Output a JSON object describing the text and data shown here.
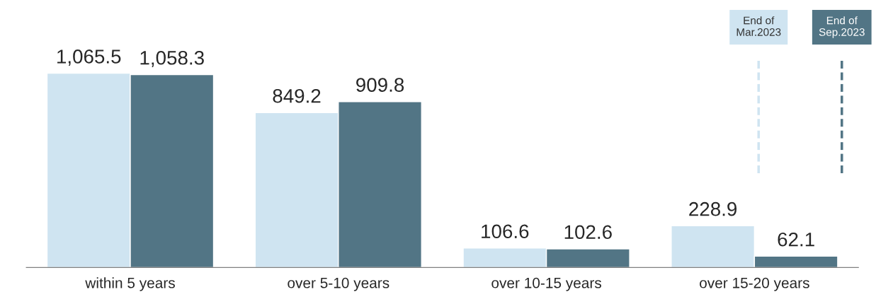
{
  "chart_data": {
    "type": "bar",
    "categories": [
      "within 5 years",
      "over 5-10 years",
      "over 10-15 years",
      "over 15-20 years"
    ],
    "series": [
      {
        "name": "End of\nMar.2023",
        "color": "#cfe4f1",
        "values": [
          1065.5,
          849.2,
          106.6,
          228.9
        ],
        "value_labels": [
          "1,065.5",
          "849.2",
          "106.6",
          "228.9"
        ]
      },
      {
        "name": "End of\nSep.2023",
        "color": "#527585",
        "values": [
          1058.3,
          909.8,
          102.6,
          62.1
        ],
        "value_labels": [
          "1,058.3",
          "909.8",
          "102.6",
          "62.1"
        ]
      }
    ],
    "legend": "top right",
    "grid": false
  }
}
